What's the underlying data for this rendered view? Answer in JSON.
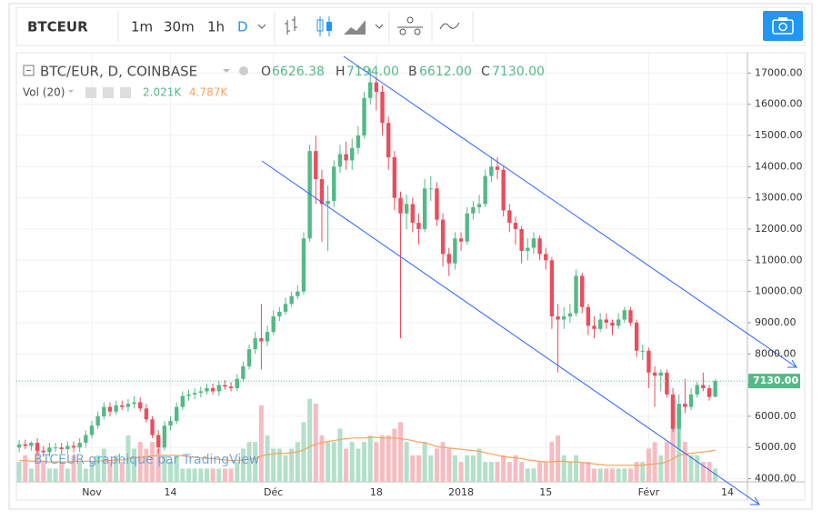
{
  "toolbar": {
    "symbol": "BTCEUR",
    "intervals": [
      "1m",
      "30m",
      "1h",
      "D"
    ]
  },
  "chart_data": {
    "type": "candlestick",
    "legend": {
      "title": "BTC/EUR, D, COINBASE",
      "ohlc": [
        {
          "label": "O",
          "value": "6626.38"
        },
        {
          "label": "H",
          "value": "7194.00"
        },
        {
          "label": "B",
          "value": "6612.00"
        },
        {
          "label": "C",
          "value": "7130.00"
        }
      ],
      "volume_title": "Vol (20)",
      "volume_values": [
        "2.021K",
        "4.787K"
      ]
    },
    "watermark": "BTCEUR graphique par TradingView",
    "categories": [
      null,
      null,
      null,
      null,
      null,
      null,
      null,
      null,
      null,
      null,
      null,
      null,
      "Nov",
      null,
      null,
      null,
      null,
      null,
      null,
      null,
      null,
      null,
      null,
      null,
      null,
      "14",
      null,
      null,
      null,
      null,
      null,
      null,
      null,
      null,
      null,
      null,
      null,
      null,
      null,
      null,
      null,
      null,
      "Déc",
      null,
      null,
      null,
      null,
      null,
      null,
      null,
      null,
      null,
      null,
      null,
      null,
      null,
      null,
      null,
      null,
      "18",
      null,
      null,
      null,
      null,
      null,
      null,
      null,
      null,
      null,
      null,
      null,
      null,
      null,
      "2018",
      null,
      null,
      null,
      null,
      null,
      null,
      null,
      null,
      null,
      null,
      null,
      null,
      null,
      "15",
      null,
      null,
      null,
      null,
      null,
      null,
      null,
      null,
      null,
      null,
      null,
      null,
      null,
      null,
      null,
      null,
      "Févr",
      null,
      null,
      null,
      null,
      null,
      null,
      null,
      null,
      null,
      null,
      null,
      null,
      "14"
    ],
    "open": [
      5000,
      5100,
      5050,
      5150,
      4900,
      4850,
      5000,
      5000,
      4950,
      5050,
      5000,
      5150,
      5400,
      5700,
      6000,
      6300,
      6150,
      6350,
      6300,
      6400,
      6450,
      6250,
      5900,
      5400,
      5000,
      5700,
      5850,
      6300,
      6650,
      6700,
      6750,
      6800,
      6900,
      6800,
      7000,
      6950,
      6900,
      7200,
      7600,
      8150,
      8500,
      8400,
      8700,
      9200,
      9350,
      9600,
      9850,
      10000,
      11700,
      14500,
      13600,
      12800,
      12900,
      14000,
      14400,
      14200,
      14600,
      15000,
      16200,
      16700,
      16400,
      15400,
      14300,
      13000,
      12500,
      12800,
      12200,
      12000,
      13300,
      13300,
      12300,
      11200,
      10900,
      11700,
      11600,
      12500,
      12700,
      12800,
      13700,
      14000,
      13900,
      12600,
      12200,
      12000,
      11300,
      11400,
      11700,
      11200,
      11000,
      9200,
      9100,
      9200,
      9300,
      10500,
      9500,
      8900,
      8800,
      9100,
      9000,
      8900,
      9100,
      9400,
      9000,
      8100,
      8100,
      7400,
      7300,
      7400,
      6700,
      5600,
      6400,
      6300,
      6700,
      7000,
      6900,
      6626.38,
      null,
      null
    ],
    "high": [
      5250,
      5250,
      5200,
      5300,
      5050,
      5150,
      5150,
      5150,
      5200,
      5200,
      5300,
      5550,
      5850,
      6150,
      6450,
      6450,
      6500,
      6500,
      6550,
      6650,
      6600,
      6400,
      6000,
      5550,
      5850,
      6000,
      6450,
      6800,
      6850,
      6900,
      6950,
      7050,
      7050,
      7150,
      7150,
      7100,
      7350,
      7750,
      8300,
      8700,
      9600,
      8900,
      9400,
      9500,
      9800,
      10000,
      10200,
      11900,
      14700,
      15000,
      13900,
      13400,
      14200,
      14700,
      14800,
      14900,
      15300,
      16400,
      17150,
      16900,
      16600,
      15600,
      14500,
      13200,
      13100,
      13000,
      12500,
      13600,
      13700,
      13500,
      12500,
      11400,
      11900,
      11900,
      12700,
      12900,
      13100,
      13900,
      14300,
      14300,
      14000,
      12800,
      12400,
      12100,
      11700,
      11900,
      11800,
      11400,
      11100,
      9600,
      9500,
      9600,
      10700,
      10600,
      9600,
      9200,
      9300,
      9300,
      9100,
      9300,
      9500,
      9500,
      9100,
      8300,
      8200,
      7600,
      7500,
      7500,
      6900,
      6700,
      7200,
      6900,
      7100,
      7400,
      7000,
      7194,
      null,
      null
    ],
    "low": [
      4850,
      4950,
      4900,
      4750,
      4700,
      4700,
      4850,
      4800,
      4800,
      4850,
      4850,
      5000,
      5300,
      5600,
      5900,
      6000,
      6050,
      6200,
      6150,
      6250,
      6150,
      5800,
      5300,
      4800,
      4900,
      5550,
      5750,
      6200,
      6500,
      6550,
      6600,
      6700,
      6700,
      6650,
      6850,
      6800,
      6800,
      7100,
      7500,
      8000,
      7500,
      8250,
      8600,
      9050,
      9250,
      9500,
      9750,
      9900,
      11600,
      12800,
      11600,
      11300,
      12700,
      13800,
      13900,
      13900,
      14400,
      14900,
      16000,
      15800,
      15000,
      13900,
      12600,
      8500,
      12000,
      11900,
      11500,
      11900,
      12900,
      12100,
      10800,
      10500,
      10700,
      11300,
      11500,
      12300,
      12500,
      12700,
      13500,
      13600,
      12400,
      11900,
      11500,
      10900,
      11000,
      11200,
      11000,
      10700,
      8800,
      7400,
      8800,
      9000,
      9200,
      9300,
      8600,
      8500,
      8700,
      8800,
      8600,
      8800,
      9000,
      8900,
      7900,
      7800,
      6900,
      6300,
      6800,
      6600,
      5500,
      5000,
      6100,
      6200,
      6600,
      6800,
      6500,
      6612,
      null,
      null
    ],
    "close": [
      5100,
      5050,
      5150,
      4900,
      4850,
      5000,
      5000,
      4950,
      5050,
      5000,
      5150,
      5400,
      5700,
      6000,
      6300,
      6150,
      6350,
      6300,
      6400,
      6450,
      6250,
      5900,
      5400,
      5000,
      5700,
      5850,
      6300,
      6650,
      6700,
      6750,
      6800,
      6900,
      6800,
      7000,
      6950,
      6900,
      7200,
      7600,
      8150,
      8500,
      8400,
      8700,
      9200,
      9350,
      9600,
      9850,
      10000,
      11700,
      14500,
      13600,
      12800,
      12900,
      14000,
      14400,
      14200,
      14600,
      15000,
      16200,
      16700,
      16400,
      15400,
      14300,
      13000,
      12500,
      12800,
      12200,
      12000,
      13300,
      13300,
      12300,
      11200,
      10900,
      11700,
      11600,
      12500,
      12700,
      12800,
      13700,
      14000,
      13900,
      12600,
      12200,
      12000,
      11300,
      11400,
      11700,
      11200,
      11000,
      9200,
      9100,
      9200,
      9300,
      10500,
      9500,
      8900,
      8800,
      9100,
      9000,
      8900,
      9100,
      9400,
      9000,
      8100,
      8100,
      7400,
      7300,
      7400,
      6700,
      5600,
      6400,
      6300,
      6700,
      7000,
      6900,
      6620,
      7130,
      null,
      null
    ],
    "volume": [
      3,
      4,
      2,
      5,
      3,
      2,
      2,
      3,
      2,
      4,
      3,
      2,
      3,
      4,
      5,
      3,
      4,
      3,
      7,
      5,
      6,
      5,
      6,
      5,
      4,
      3,
      4,
      2,
      2,
      2,
      2,
      2,
      2,
      2,
      2,
      2,
      3,
      5,
      6,
      6,
      11.5,
      7,
      5,
      5,
      4,
      5,
      6,
      9,
      12.5,
      11.8,
      7,
      6,
      6,
      8,
      5,
      6,
      5,
      6,
      7,
      6,
      7,
      7,
      8,
      9,
      6,
      4,
      4,
      6,
      4,
      5,
      6,
      5,
      4,
      3,
      4,
      4,
      5,
      3,
      3,
      3,
      4,
      3,
      4,
      3,
      2,
      2,
      3,
      3,
      6,
      7,
      4,
      3,
      4,
      3,
      3,
      2,
      2,
      2,
      2,
      2,
      2,
      2,
      3,
      3,
      5,
      6,
      4,
      6,
      12.2,
      11,
      6,
      4,
      4,
      3,
      3,
      2.021,
      null,
      null
    ],
    "volume_ma": [
      3.2,
      3.2,
      3.1,
      3.1,
      3.1,
      3.0,
      3.0,
      3.0,
      3.0,
      3.1,
      3.1,
      3.1,
      3.1,
      3.1,
      3.2,
      3.2,
      3.3,
      3.3,
      3.5,
      3.6,
      3.7,
      3.8,
      3.9,
      4.0,
      4.0,
      4.0,
      4.0,
      3.9,
      3.8,
      3.7,
      3.6,
      3.5,
      3.5,
      3.4,
      3.3,
      3.2,
      3.2,
      3.3,
      3.4,
      3.5,
      3.9,
      4.1,
      4.2,
      4.3,
      4.3,
      4.4,
      4.5,
      4.8,
      5.3,
      5.7,
      5.9,
      6.1,
      6.2,
      6.4,
      6.5,
      6.6,
      6.6,
      6.6,
      6.7,
      6.7,
      6.6,
      6.6,
      6.6,
      6.5,
      6.4,
      6.2,
      6.0,
      5.9,
      5.6,
      5.3,
      5.2,
      5.1,
      5.0,
      4.9,
      4.8,
      4.7,
      4.6,
      4.4,
      4.2,
      4.0,
      3.8,
      3.7,
      3.6,
      3.5,
      3.3,
      3.2,
      3.1,
      3.0,
      3.0,
      3.1,
      3.1,
      3.0,
      3.0,
      2.9,
      2.8,
      2.7,
      2.6,
      2.5,
      2.5,
      2.5,
      2.5,
      2.5,
      2.5,
      2.5,
      2.6,
      2.7,
      2.8,
      3.0,
      3.5,
      4.0,
      4.2,
      4.3,
      4.4,
      4.5,
      4.6,
      4.787,
      null,
      null
    ],
    "colors": {
      "up": "#53b987",
      "down": "#eb4d5c",
      "volume_up": "#b3e0c9",
      "volume_down": "#f6bcc2",
      "volume_ma": "#f5a25d"
    },
    "ylim": [
      3900,
      17650
    ],
    "yticks": [
      {
        "value": 4000,
        "label": "4000.00"
      },
      {
        "value": 5000,
        "label": "5000.00"
      },
      {
        "value": 6000,
        "label": "6000.00"
      },
      {
        "value": 7000,
        "label": "7000.00"
      },
      {
        "value": 8000,
        "label": "8000.00"
      },
      {
        "value": 9000,
        "label": "9000.00"
      },
      {
        "value": 10000,
        "label": "10000.00"
      },
      {
        "value": 11000,
        "label": "11000.00"
      },
      {
        "value": 12000,
        "label": "12000.00"
      },
      {
        "value": 13000,
        "label": "13000.00"
      },
      {
        "value": 14000,
        "label": "14000.00"
      },
      {
        "value": 15000,
        "label": "15000.00"
      },
      {
        "value": 16000,
        "label": "16000.00"
      },
      {
        "value": 17000,
        "label": "17000.00"
      }
    ],
    "last_price": {
      "value": 7130,
      "label": "7130.00"
    },
    "grid": true
  }
}
